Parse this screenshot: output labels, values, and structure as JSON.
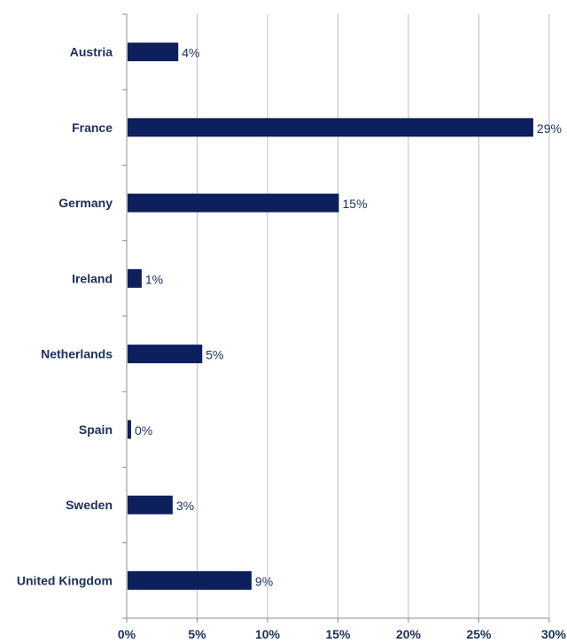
{
  "chart_data": {
    "type": "bar",
    "orientation": "horizontal",
    "categories": [
      "Austria",
      "France",
      "Germany",
      "Ireland",
      "Netherlands",
      "Spain",
      "Sweden",
      "United Kingdom"
    ],
    "values": [
      3.6,
      28.8,
      15.0,
      1.0,
      5.3,
      0.25,
      3.2,
      8.8
    ],
    "data_labels": [
      "4%",
      "29%",
      "15%",
      "1%",
      "5%",
      "0%",
      "3%",
      "9%"
    ],
    "x_ticks": [
      "0%",
      "5%",
      "10%",
      "15%",
      "20%",
      "25%",
      "30%"
    ],
    "xlim": [
      0,
      30
    ],
    "grid": "vertical",
    "legend": "none",
    "colors": {
      "bar": "#0d1f5c",
      "text": "#1b2f5c",
      "grid": "#bfbfbf",
      "axis": "#8c8c8c"
    }
  }
}
